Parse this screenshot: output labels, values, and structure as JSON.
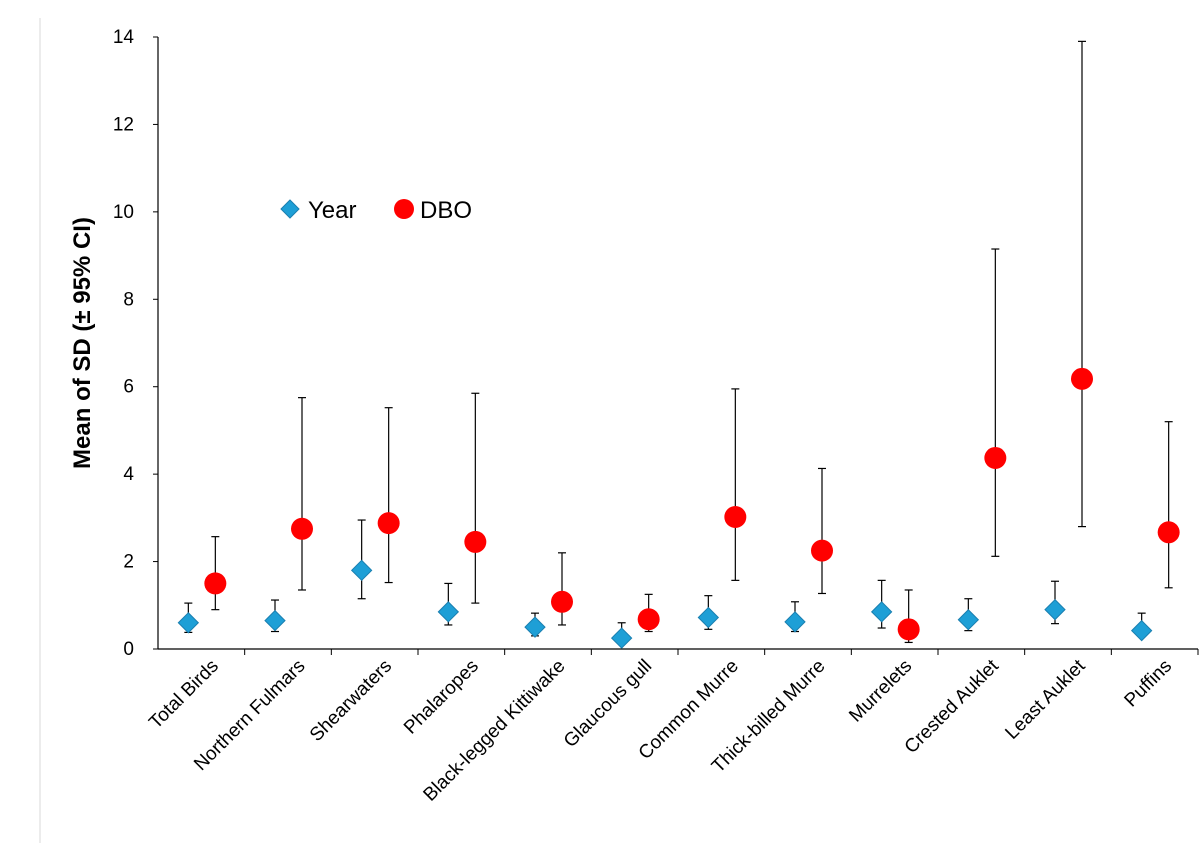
{
  "chart_data": {
    "type": "scatter",
    "title": "",
    "xlabel": "",
    "ylabel": "Mean of SD (± 95% CI)",
    "ylim": [
      0,
      14
    ],
    "yticks": [
      0,
      2,
      4,
      6,
      8,
      10,
      12,
      14
    ],
    "grid": false,
    "legend_position": "upper-left",
    "categories": [
      "Total Birds",
      "Northern Fulmars",
      "Shearwaters",
      "Phalaropes",
      "Black-legged Kittiwake",
      "Glaucous gull",
      "Common Murre",
      "Thick-billed Murre",
      "Murrelets",
      "Crested Auklet",
      "Least Auklet",
      "Puffins"
    ],
    "series": [
      {
        "name": "Year",
        "marker": "diamond",
        "color": "#1e9fd6",
        "values": [
          0.6,
          0.65,
          1.8,
          0.85,
          0.5,
          0.25,
          0.72,
          0.62,
          0.85,
          0.67,
          0.9,
          0.42
        ],
        "ci_low": [
          0.38,
          0.4,
          1.15,
          0.55,
          0.3,
          0.12,
          0.45,
          0.4,
          0.48,
          0.42,
          0.58,
          0.3
        ],
        "ci_high": [
          1.05,
          1.12,
          2.95,
          1.5,
          0.82,
          0.6,
          1.22,
          1.08,
          1.57,
          1.15,
          1.55,
          0.82
        ]
      },
      {
        "name": "DBO",
        "marker": "circle",
        "color": "#ff0000",
        "values": [
          1.5,
          2.75,
          2.88,
          2.45,
          1.08,
          0.68,
          3.02,
          2.25,
          0.45,
          4.37,
          6.18,
          2.67
        ],
        "ci_low": [
          0.9,
          1.35,
          1.52,
          1.05,
          0.55,
          0.4,
          1.57,
          1.27,
          0.15,
          2.12,
          2.8,
          1.4
        ],
        "ci_high": [
          2.57,
          5.75,
          5.52,
          5.85,
          2.2,
          1.25,
          5.95,
          4.13,
          1.35,
          9.15,
          13.9,
          5.2
        ]
      }
    ]
  }
}
